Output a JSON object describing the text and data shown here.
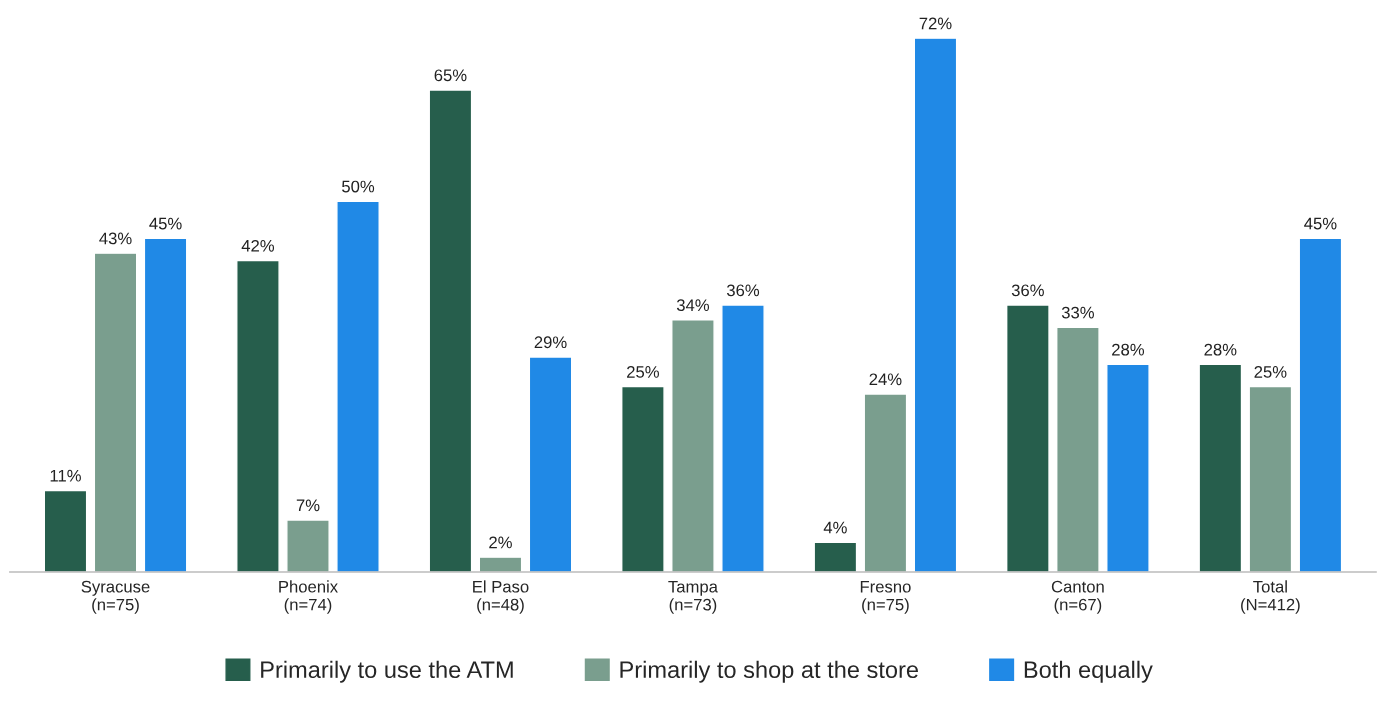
{
  "chart_data": {
    "type": "bar",
    "categories": [
      "Syracuse\n(n=75)",
      "Phoenix\n(n=74)",
      "El Paso\n(n=48)",
      "Tampa\n(n=73)",
      "Fresno\n(n=75)",
      "Canton\n(n=67)",
      "Total\n(N=412)"
    ],
    "series": [
      {
        "name": "Primarily to use the ATM",
        "color": "#265e4c",
        "values": [
          11,
          42,
          65,
          25,
          4,
          36,
          28
        ],
        "value_labels": [
          "11%",
          "42%",
          "65%",
          "25%",
          "4%",
          "36%",
          "28%"
        ]
      },
      {
        "name": "Primarily to shop at the store",
        "color": "#7a9e8e",
        "values": [
          43,
          7,
          2,
          34,
          24,
          33,
          25
        ],
        "value_labels": [
          "43%",
          "7%",
          "2%",
          "34%",
          "24%",
          "33%",
          "25%"
        ]
      },
      {
        "name": "Both equally",
        "color": "#2089e6",
        "values": [
          45,
          50,
          29,
          36,
          72,
          28,
          45
        ],
        "value_labels": [
          "45%",
          "50%",
          "29%",
          "36%",
          "72%",
          "28%",
          "45%"
        ]
      }
    ],
    "legend": "bottom",
    "grid": false,
    "tick_labels": "x"
  }
}
